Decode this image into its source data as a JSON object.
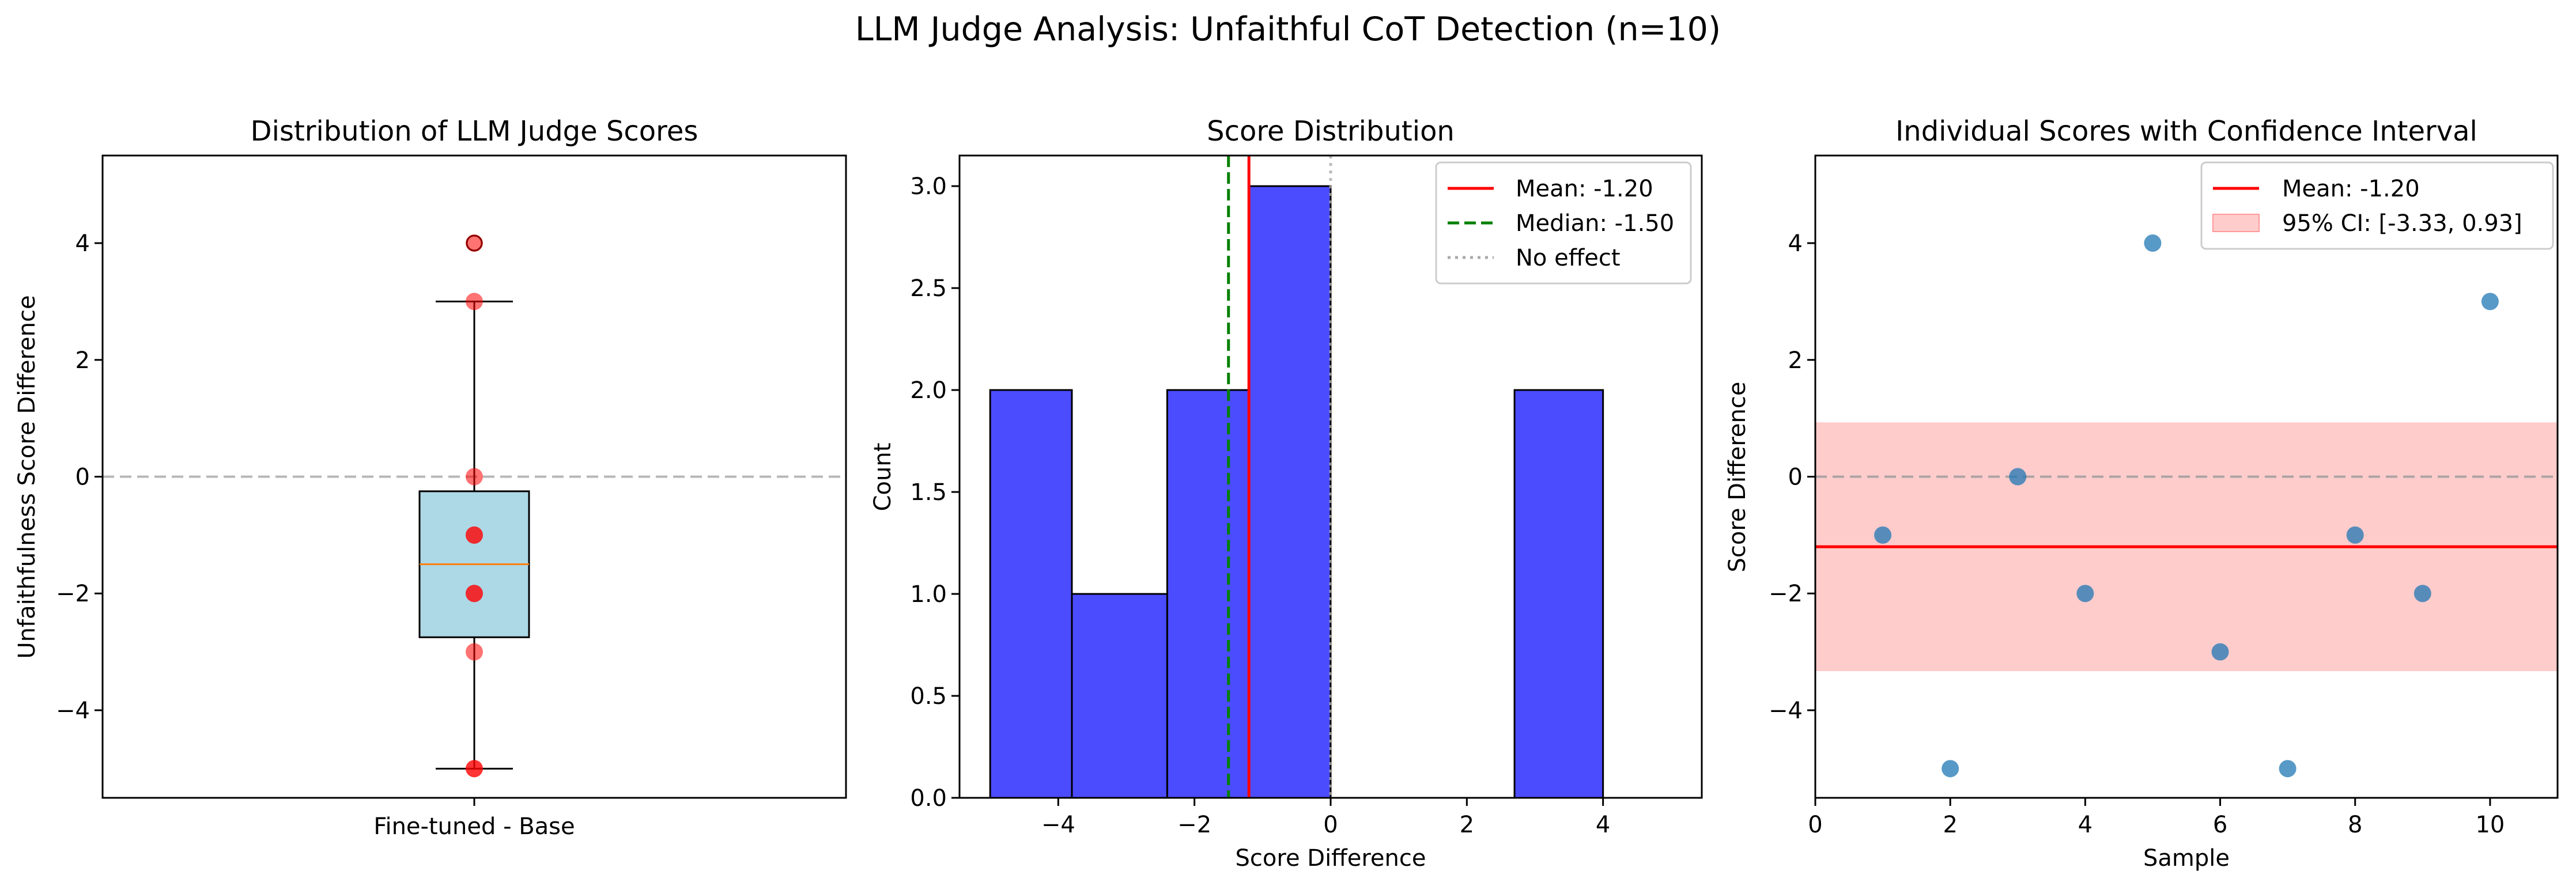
{
  "figure": {
    "suptitle": "LLM Judge Analysis: Unfaithful CoT Detection (n=10)"
  },
  "colors": {
    "box_fill": "#add8e6",
    "median_line": "#ff7f0e",
    "points_red": "#ff0000",
    "hist_bar": "#0000ff",
    "mean_line": "#ff0000",
    "median_dash": "#008000",
    "no_effect": "#aaaaaa",
    "zero_line": "#999999",
    "scatter_point": "#1f77b4",
    "ci_band": "#ff9999"
  },
  "chart_data": [
    {
      "type": "box",
      "title": "Distribution of LLM Judge Scores",
      "xlabel": "",
      "ylabel": "Unfaithfulness Score Difference",
      "categories": [
        "Fine-tuned - Base"
      ],
      "values": [
        -1,
        -5,
        0,
        -2,
        4,
        -3,
        -5,
        -1,
        -2,
        3
      ],
      "box": {
        "min": -5,
        "q1": -2.75,
        "median": -1.5,
        "q3": -0.25,
        "max": 3,
        "outliers": [
          4
        ]
      },
      "ylim": [
        -5.5,
        5.5
      ],
      "yticks": [
        -4,
        -2,
        0,
        2,
        4
      ],
      "reference_line": 0,
      "grid": false
    },
    {
      "type": "bar",
      "title": "Score Distribution",
      "xlabel": "Score Difference",
      "ylabel": "Count",
      "bins": [
        {
          "start": -5.0,
          "end": -3.8,
          "count": 2
        },
        {
          "start": -3.8,
          "end": -2.4,
          "count": 1
        },
        {
          "start": -2.4,
          "end": -1.2,
          "count": 2
        },
        {
          "start": -1.2,
          "end": 0.0,
          "count": 3
        },
        {
          "start": 0.0,
          "end": 1.4,
          "count": 0
        },
        {
          "start": 1.4,
          "end": 2.7,
          "count": 0
        },
        {
          "start": 2.7,
          "end": 4.0,
          "count": 2
        }
      ],
      "xlim": [
        -5.45,
        5.45
      ],
      "ylim": [
        0,
        3.15
      ],
      "xticks": [
        -4,
        -2,
        0,
        2,
        4
      ],
      "yticks": [
        0.0,
        0.5,
        1.0,
        1.5,
        2.0,
        2.5,
        3.0
      ],
      "mean": -1.2,
      "median": -1.5,
      "no_effect": 0,
      "legend": [
        "Mean: -1.20",
        "Median: -1.50",
        "No effect"
      ],
      "legend_position": "top-right",
      "grid": false
    },
    {
      "type": "scatter",
      "title": "Individual Scores with Confidence Interval",
      "xlabel": "Sample",
      "ylabel": "Score Difference",
      "x": [
        1,
        2,
        3,
        4,
        5,
        6,
        7,
        8,
        9,
        10
      ],
      "y": [
        -1,
        -5,
        0,
        -2,
        4,
        -3,
        -5,
        -1,
        -2,
        3
      ],
      "xlim": [
        0,
        11
      ],
      "ylim": [
        -5.5,
        5.5
      ],
      "xticks": [
        0,
        2,
        4,
        6,
        8,
        10
      ],
      "yticks": [
        -4,
        -2,
        0,
        2,
        4
      ],
      "mean": -1.2,
      "ci": [
        -3.33,
        0.93
      ],
      "reference_line": 0,
      "legend": [
        "Mean: -1.20",
        "95% CI: [-3.33, 0.93]"
      ],
      "legend_position": "top-right",
      "grid": false
    }
  ]
}
